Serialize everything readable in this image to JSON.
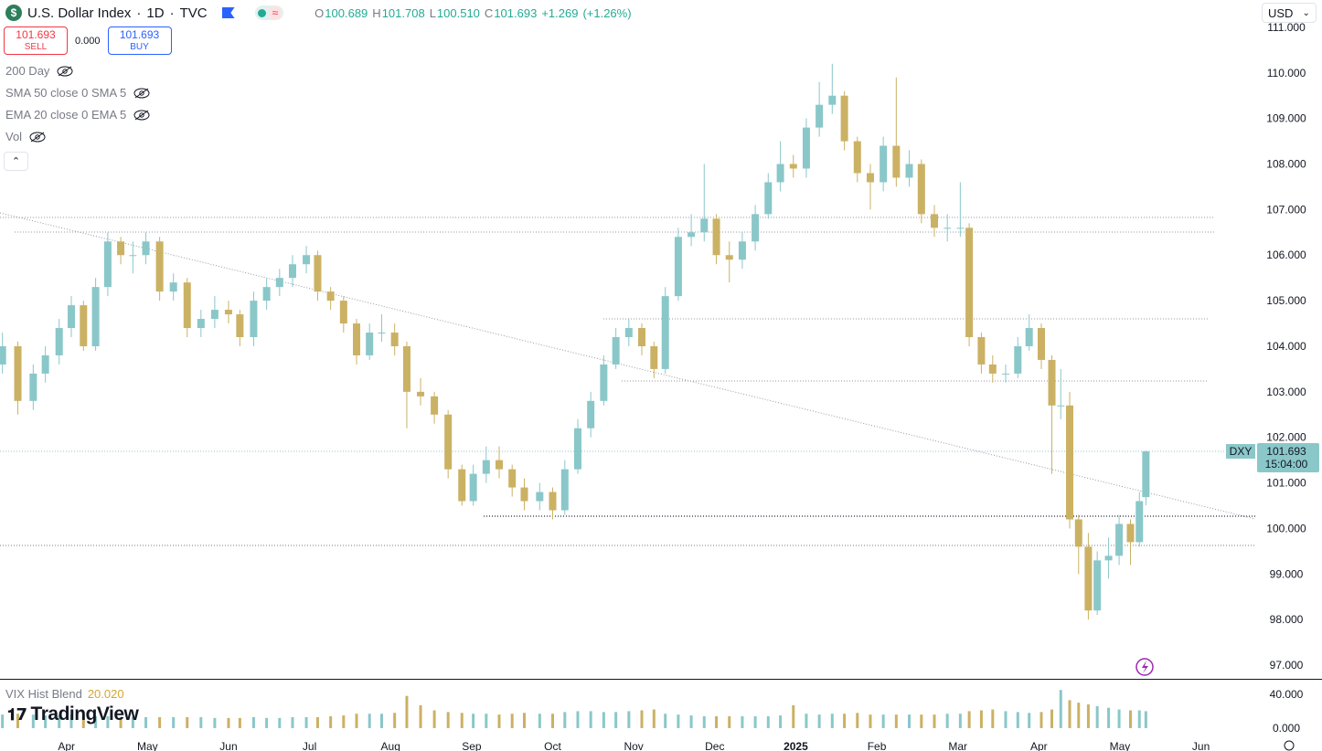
{
  "header": {
    "symbol": "U.S. Dollar Index",
    "interval": "1D",
    "exchange": "TVC",
    "currency": "USD",
    "ohlc": [
      {
        "key": "O",
        "value": "100.689"
      },
      {
        "key": "H",
        "value": "101.708"
      },
      {
        "key": "L",
        "value": "100.510"
      },
      {
        "key": "C",
        "value": "101.693"
      }
    ],
    "change": "+1.269",
    "change_pct": "(+1.26%)",
    "sell_price": "101.693",
    "sell_label": "SELL",
    "spread": "0.000",
    "buy_price": "101.693",
    "buy_label": "BUY",
    "indicators": [
      "200 Day",
      "SMA 50 close 0 SMA 5",
      "EMA 20 close 0 EMA 5",
      "Vol"
    ],
    "logo": "TradingView"
  },
  "chart_data": {
    "type": "candlestick",
    "up_color": "#8ac7c9",
    "down_color": "#cbb164",
    "xlim": [
      -0.82,
      14.67
    ],
    "xticks": [
      {
        "value": 0,
        "label": "Apr"
      },
      {
        "value": 1,
        "label": "May"
      },
      {
        "value": 2,
        "label": "Jun"
      },
      {
        "value": 3,
        "label": "Jul"
      },
      {
        "value": 4,
        "label": "Aug"
      },
      {
        "value": 5,
        "label": "Sep"
      },
      {
        "value": 6,
        "label": "Oct"
      },
      {
        "value": 7,
        "label": "Nov"
      },
      {
        "value": 8,
        "label": "Dec"
      },
      {
        "value": 9,
        "label": "2025"
      },
      {
        "value": 10,
        "label": "Feb"
      },
      {
        "value": 11,
        "label": "Mar"
      },
      {
        "value": 12,
        "label": "Apr"
      },
      {
        "value": 13,
        "label": "May"
      },
      {
        "value": 14,
        "label": "Jun"
      }
    ],
    "ylim": [
      96.7,
      111.6
    ],
    "yticks": [
      {
        "value": 97,
        "label": "97.000"
      },
      {
        "value": 98,
        "label": "98.000"
      },
      {
        "value": 99,
        "label": "99.000"
      },
      {
        "value": 100,
        "label": "100.000"
      },
      {
        "value": 101,
        "label": "101.000"
      },
      {
        "value": 102,
        "label": "102.000"
      },
      {
        "value": 103,
        "label": "103.000"
      },
      {
        "value": 104,
        "label": "104.000"
      },
      {
        "value": 105,
        "label": "105.000"
      },
      {
        "value": 106,
        "label": "106.000"
      },
      {
        "value": 107,
        "label": "107.000"
      },
      {
        "value": 108,
        "label": "108.000"
      },
      {
        "value": 109,
        "label": "109.000"
      },
      {
        "value": 110,
        "label": "110.000"
      },
      {
        "value": 111,
        "label": "111.000"
      }
    ],
    "last_price": {
      "symbol": "DXY",
      "value": 101.693,
      "label": "101.693",
      "countdown": "15:04:00"
    },
    "candles": [
      [
        -0.79,
        103.6,
        104.3,
        103.4,
        104.0
      ],
      [
        -0.6,
        104.0,
        104.1,
        102.5,
        102.8
      ],
      [
        -0.41,
        102.8,
        103.6,
        102.6,
        103.4
      ],
      [
        -0.26,
        103.4,
        104.0,
        103.2,
        103.8
      ],
      [
        -0.09,
        103.8,
        104.6,
        103.6,
        104.4
      ],
      [
        0.06,
        104.4,
        105.1,
        104.2,
        104.9
      ],
      [
        0.21,
        104.9,
        105.0,
        103.9,
        104.0
      ],
      [
        0.36,
        104.0,
        105.5,
        103.9,
        105.3
      ],
      [
        0.51,
        105.3,
        106.5,
        105.1,
        106.3
      ],
      [
        0.67,
        106.3,
        106.4,
        105.8,
        106.0
      ],
      [
        0.82,
        106.0,
        106.3,
        105.6,
        106.0
      ],
      [
        0.98,
        106.0,
        106.5,
        105.8,
        106.3
      ],
      [
        1.15,
        106.3,
        106.4,
        105.0,
        105.2
      ],
      [
        1.32,
        105.2,
        105.6,
        105.0,
        105.4
      ],
      [
        1.49,
        105.4,
        105.5,
        104.2,
        104.4
      ],
      [
        1.66,
        104.4,
        104.8,
        104.2,
        104.6
      ],
      [
        1.83,
        104.6,
        105.1,
        104.4,
        104.8
      ],
      [
        2.0,
        104.8,
        105.0,
        104.5,
        104.7
      ],
      [
        2.14,
        104.7,
        104.8,
        104.0,
        104.2
      ],
      [
        2.31,
        104.2,
        105.2,
        104.0,
        105.0
      ],
      [
        2.47,
        105.0,
        105.5,
        104.8,
        105.3
      ],
      [
        2.63,
        105.3,
        105.7,
        105.1,
        105.5
      ],
      [
        2.79,
        105.5,
        106.0,
        105.3,
        105.8
      ],
      [
        2.96,
        105.8,
        106.2,
        105.6,
        106.0
      ],
      [
        3.1,
        106.0,
        106.1,
        105.0,
        105.2
      ],
      [
        3.26,
        105.2,
        105.3,
        104.8,
        105.0
      ],
      [
        3.42,
        105.0,
        105.1,
        104.3,
        104.5
      ],
      [
        3.58,
        104.5,
        104.6,
        103.6,
        103.8
      ],
      [
        3.74,
        103.8,
        104.5,
        103.7,
        104.3
      ],
      [
        3.89,
        104.3,
        104.7,
        104.1,
        104.3
      ],
      [
        4.05,
        104.3,
        104.5,
        103.8,
        104.0
      ],
      [
        4.2,
        104.0,
        104.1,
        102.2,
        103.0
      ],
      [
        4.37,
        103.0,
        103.3,
        102.7,
        102.9
      ],
      [
        4.54,
        102.9,
        103.0,
        102.3,
        102.5
      ],
      [
        4.71,
        102.5,
        102.6,
        101.1,
        101.3
      ],
      [
        4.88,
        101.3,
        101.4,
        100.5,
        100.6
      ],
      [
        5.02,
        100.6,
        101.4,
        100.5,
        101.2
      ],
      [
        5.18,
        101.2,
        101.8,
        101.0,
        101.5
      ],
      [
        5.34,
        101.5,
        101.8,
        101.1,
        101.3
      ],
      [
        5.5,
        101.3,
        101.4,
        100.7,
        100.9
      ],
      [
        5.65,
        100.9,
        101.1,
        100.4,
        100.6
      ],
      [
        5.84,
        100.6,
        101.0,
        100.4,
        100.8
      ],
      [
        6.0,
        100.8,
        100.9,
        100.2,
        100.4
      ],
      [
        6.15,
        100.4,
        101.5,
        100.3,
        101.3
      ],
      [
        6.31,
        101.3,
        102.4,
        101.2,
        102.2
      ],
      [
        6.47,
        102.2,
        103.0,
        102.0,
        102.8
      ],
      [
        6.63,
        102.8,
        103.8,
        102.7,
        103.6
      ],
      [
        6.78,
        103.6,
        104.4,
        103.5,
        104.2
      ],
      [
        6.94,
        104.2,
        104.6,
        104.0,
        104.4
      ],
      [
        7.1,
        104.4,
        104.5,
        103.8,
        104.0
      ],
      [
        7.25,
        104.0,
        104.1,
        103.3,
        103.5
      ],
      [
        7.39,
        103.5,
        105.3,
        103.4,
        105.1
      ],
      [
        7.55,
        105.1,
        106.6,
        105.0,
        106.4
      ],
      [
        7.71,
        106.4,
        106.9,
        106.2,
        106.5
      ],
      [
        7.87,
        106.5,
        108.0,
        106.3,
        106.8
      ],
      [
        8.02,
        106.8,
        106.9,
        105.8,
        106.0
      ],
      [
        8.18,
        106.0,
        106.3,
        105.4,
        105.9
      ],
      [
        8.34,
        105.9,
        106.5,
        105.7,
        106.3
      ],
      [
        8.5,
        106.3,
        107.1,
        106.1,
        106.9
      ],
      [
        8.66,
        106.9,
        107.8,
        106.8,
        107.6
      ],
      [
        8.81,
        107.6,
        108.5,
        107.4,
        108.0
      ],
      [
        8.97,
        108.0,
        108.2,
        107.7,
        107.9
      ],
      [
        9.13,
        107.9,
        109.0,
        107.7,
        108.8
      ],
      [
        9.29,
        108.8,
        109.8,
        108.6,
        109.3
      ],
      [
        9.45,
        109.3,
        110.2,
        109.1,
        109.5
      ],
      [
        9.6,
        109.5,
        109.6,
        108.3,
        108.5
      ],
      [
        9.76,
        108.5,
        108.6,
        107.6,
        107.8
      ],
      [
        9.92,
        107.8,
        108.0,
        107.0,
        107.6
      ],
      [
        10.08,
        107.6,
        108.6,
        107.4,
        108.4
      ],
      [
        10.24,
        108.4,
        109.9,
        107.5,
        107.7
      ],
      [
        10.4,
        107.7,
        108.3,
        107.5,
        108.0
      ],
      [
        10.55,
        108.0,
        108.1,
        106.7,
        106.9
      ],
      [
        10.71,
        106.9,
        107.1,
        106.4,
        106.6
      ],
      [
        10.87,
        106.6,
        106.9,
        106.3,
        106.6
      ],
      [
        11.03,
        106.6,
        107.6,
        106.4,
        106.6
      ],
      [
        11.14,
        106.6,
        106.7,
        104.0,
        104.2
      ],
      [
        11.29,
        104.2,
        104.3,
        103.4,
        103.6
      ],
      [
        11.43,
        103.6,
        103.8,
        103.2,
        103.4
      ],
      [
        11.59,
        103.4,
        103.6,
        103.2,
        103.4
      ],
      [
        11.74,
        103.4,
        104.2,
        103.3,
        104.0
      ],
      [
        11.88,
        104.0,
        104.7,
        103.9,
        104.4
      ],
      [
        12.03,
        104.4,
        104.5,
        103.5,
        103.7
      ],
      [
        12.16,
        103.7,
        103.8,
        101.2,
        102.7
      ],
      [
        12.27,
        102.7,
        103.5,
        102.4,
        102.7
      ],
      [
        12.38,
        102.7,
        103.0,
        100.0,
        100.2
      ],
      [
        12.49,
        100.2,
        100.3,
        99.0,
        99.6
      ],
      [
        12.61,
        99.6,
        99.9,
        98.0,
        98.2
      ],
      [
        12.72,
        98.2,
        99.5,
        98.1,
        99.3
      ],
      [
        12.86,
        99.3,
        99.8,
        98.9,
        99.4
      ],
      [
        12.99,
        99.4,
        100.3,
        99.2,
        100.1
      ],
      [
        13.13,
        100.1,
        100.2,
        99.2,
        99.7
      ],
      [
        13.24,
        99.7,
        100.8,
        99.6,
        100.6
      ],
      [
        13.32,
        100.689,
        101.708,
        100.51,
        101.693
      ]
    ],
    "volume_pane": {
      "title": "VIX Hist Blend",
      "last_label": "20.020",
      "ylim": [
        0,
        56
      ],
      "yticks": [
        {
          "value": 0,
          "label": "0.000"
        },
        {
          "value": 40,
          "label": "40.000"
        }
      ],
      "values": [
        16,
        17,
        16,
        15,
        15,
        16,
        15,
        14,
        14,
        13,
        13,
        13,
        13,
        13,
        13,
        13,
        12,
        12,
        12,
        13,
        12,
        12,
        13,
        13,
        13,
        14,
        15,
        17,
        17,
        17,
        18,
        38,
        27,
        21,
        19,
        18,
        17,
        17,
        16,
        17,
        18,
        17,
        17,
        19,
        20,
        20,
        19,
        19,
        20,
        21,
        22,
        17,
        16,
        15,
        14,
        14,
        14,
        14,
        14,
        14,
        15,
        27,
        17,
        16,
        17,
        17,
        18,
        16,
        16,
        16,
        16,
        16,
        16,
        17,
        17,
        20,
        21,
        22,
        20,
        19,
        18,
        19,
        22,
        45,
        33,
        30,
        28,
        26,
        24,
        22,
        21,
        21,
        20
      ]
    }
  }
}
